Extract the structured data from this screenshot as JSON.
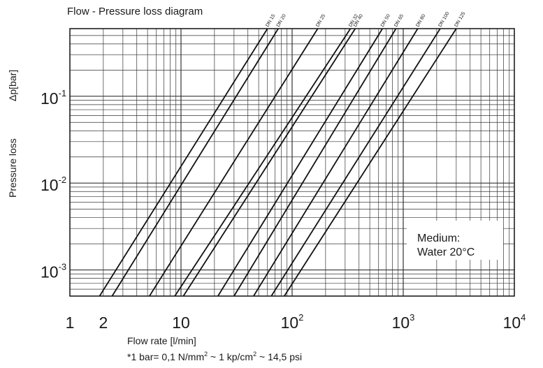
{
  "chart_data": {
    "type": "line",
    "title": "Flow - Pressure loss diagram",
    "xlabel": "Flow rate [l/min]",
    "ylabel_left": "Pressure loss",
    "ylabel_right": "Δp[bar]",
    "xscale": "log",
    "yscale": "log",
    "xlim": [
      1,
      10000
    ],
    "ylim": [
      0.0005,
      0.6
    ],
    "grid": true,
    "x_ticks": [
      {
        "base": "1",
        "exp": ""
      },
      {
        "base": "2",
        "exp": ""
      },
      {
        "base": "10",
        "exp": ""
      },
      {
        "base": "10",
        "exp": "2"
      },
      {
        "base": "10",
        "exp": "3"
      },
      {
        "base": "10",
        "exp": "4"
      }
    ],
    "y_ticks": [
      {
        "base": "10",
        "exp": "-1"
      },
      {
        "base": "10",
        "exp": "-2"
      },
      {
        "base": "10",
        "exp": "-3"
      }
    ],
    "annotation": {
      "line1": "Medium:",
      "line2": "Water 20°C"
    },
    "footnote": {
      "p1": "*1 bar= 0,1 N/mm",
      "s1": "2",
      "p2": " ~ 1 kp/cm",
      "s2": "2",
      "p3": " ~ 14,5 psi"
    },
    "series": [
      {
        "name": "DN 15",
        "x": [
          1.85,
          60
        ],
        "y": [
          0.0005,
          0.6
        ]
      },
      {
        "name": "DN 20",
        "x": [
          2.4,
          75
        ],
        "y": [
          0.0005,
          0.6
        ]
      },
      {
        "name": "DN 25",
        "x": [
          5.2,
          170
        ],
        "y": [
          0.0005,
          0.6
        ]
      },
      {
        "name": "DN 32",
        "x": [
          8.8,
          335
        ],
        "y": [
          0.0005,
          0.6
        ]
      },
      {
        "name": "DN 40",
        "x": [
          10.5,
          370
        ],
        "y": [
          0.0005,
          0.6
        ]
      },
      {
        "name": "DN 50",
        "x": [
          21.5,
          650
        ],
        "y": [
          0.0005,
          0.6
        ]
      },
      {
        "name": "DN 65",
        "x": [
          30,
          860
        ],
        "y": [
          0.0005,
          0.6
        ]
      },
      {
        "name": "DN 80",
        "x": [
          45,
          1350
        ],
        "y": [
          0.0005,
          0.6
        ]
      },
      {
        "name": "DN 100",
        "x": [
          65,
          2150
        ],
        "y": [
          0.0005,
          0.6
        ]
      },
      {
        "name": "DN 125",
        "x": [
          85,
          3000
        ],
        "y": [
          0.0005,
          0.6
        ]
      }
    ]
  }
}
